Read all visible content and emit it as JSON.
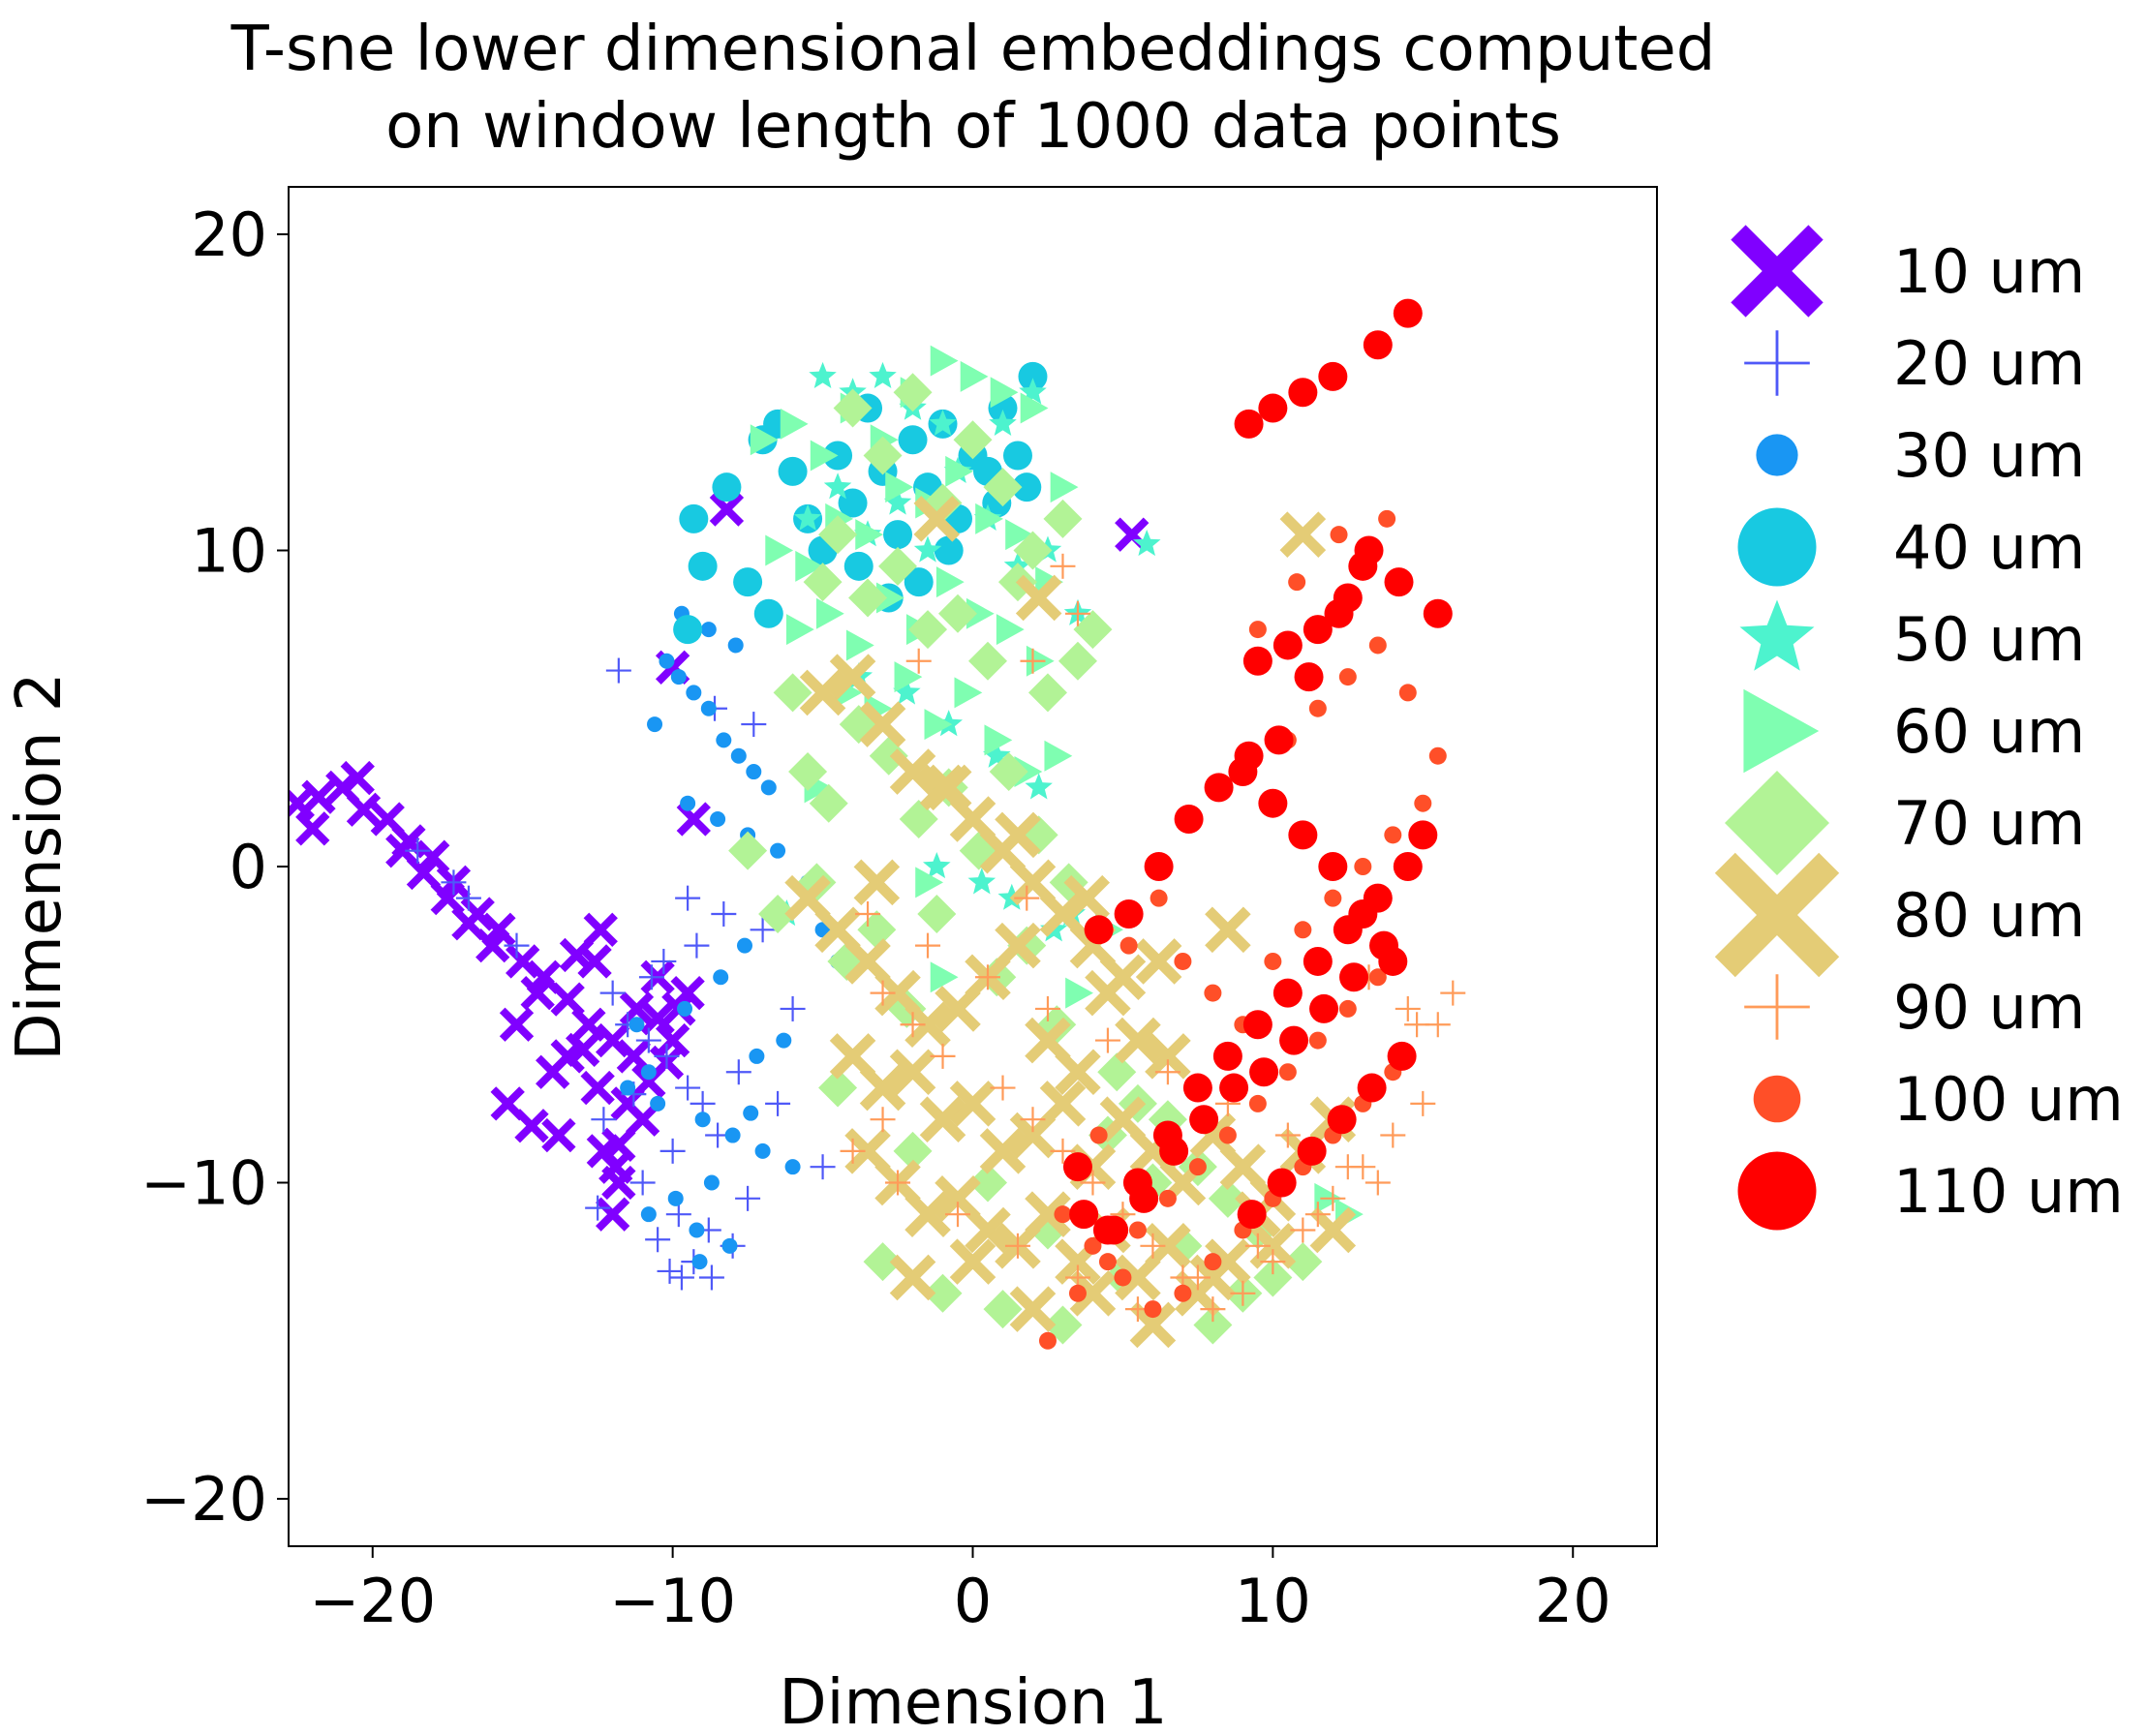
{
  "chart_data": {
    "type": "scatter",
    "title_lines": [
      "T-sne lower dimensional embeddings computed",
      "on window length of 1000 data points"
    ],
    "xlabel": "Dimension 1",
    "ylabel": "Dimension 2",
    "xlim": [
      -22.8,
      22.8
    ],
    "ylim": [
      -21.5,
      21.5
    ],
    "x_ticks": [
      -20,
      -10,
      0,
      10,
      20
    ],
    "x_tick_labels": [
      "−20",
      "−10",
      "0",
      "10",
      "20"
    ],
    "y_ticks": [
      -20,
      -10,
      0,
      10,
      20
    ],
    "y_tick_labels": [
      "−20",
      "−10",
      "0",
      "10",
      "20"
    ],
    "grid": false,
    "legend_position": "outside-right",
    "series": [
      {
        "name": "10 um",
        "marker": "X",
        "color": "#8000ff",
        "x": [
          -22.5,
          -21.8,
          -21.0,
          -20.3,
          -19.5,
          -18.8,
          -18.0,
          -17.3,
          -16.5,
          -15.8,
          -15.0,
          -14.3,
          -13.5,
          -12.8,
          -12.0,
          -11.3,
          -10.5,
          -9.8,
          -22.0,
          -20.5,
          -19.0,
          -17.5,
          -16.0,
          -14.5,
          -13.0,
          -12.5,
          -11.0,
          -10.0,
          -15.5,
          -14.0,
          -13.8,
          -12.3,
          -11.8,
          -15.2,
          -12.6,
          -11.5,
          -10.8,
          -18.3,
          -16.8,
          -13.2,
          -11.9,
          -10.2,
          -9.5,
          -12.0,
          -13.5,
          -14.7,
          -10.5,
          -11.2,
          -8.2,
          -10.0,
          -9.3,
          -11.8,
          -12.4,
          5.3
        ],
        "y": [
          2.0,
          2.2,
          2.5,
          1.8,
          1.5,
          0.8,
          0.3,
          -0.5,
          -1.5,
          -2.0,
          -3.0,
          -3.5,
          -4.2,
          -5.0,
          -5.5,
          -6.0,
          -4.8,
          -4.5,
          1.2,
          2.8,
          0.5,
          -1.0,
          -2.5,
          -4.0,
          -5.8,
          -7.0,
          -8.0,
          -5.5,
          -7.5,
          -6.5,
          -8.5,
          -9.0,
          -10.0,
          -5.0,
          -3.0,
          -7.5,
          -6.8,
          -0.2,
          -1.8,
          -2.8,
          -9.5,
          -6.2,
          -4.0,
          -11.0,
          -6.0,
          -8.2,
          -3.5,
          -4.5,
          11.3,
          6.3,
          1.5,
          -8.8,
          -2.0,
          10.5
        ]
      },
      {
        "name": "20 um",
        "marker": "plus",
        "color": "#4f59f8",
        "x": [
          -12.0,
          -11.5,
          -10.8,
          -10.2,
          -9.5,
          -9.0,
          -8.5,
          -10.0,
          -11.0,
          -9.8,
          -8.8,
          -7.5,
          -8.0,
          -9.3,
          -10.5,
          -12.5,
          -12.3,
          -11.3,
          -10.7,
          -9.2,
          -8.3,
          -7.0,
          -6.0,
          -5.0,
          -6.5,
          -7.8,
          -9.7,
          -10.1,
          -8.6,
          -7.3,
          -17.3,
          -18.5,
          -16.8,
          -15.2,
          -11.8,
          -9.5,
          -10.3,
          -8.7
        ],
        "y": [
          -4.0,
          -5.0,
          -5.5,
          -6.0,
          -7.0,
          -7.5,
          -8.5,
          -9.0,
          -10.0,
          -11.0,
          -11.5,
          -10.5,
          -12.0,
          -12.5,
          -11.8,
          -10.8,
          -8.0,
          -7.2,
          -3.5,
          -2.5,
          -1.5,
          -2.0,
          -4.5,
          -9.5,
          -7.5,
          -6.5,
          -13.0,
          -12.8,
          5.0,
          4.5,
          -0.5,
          0.5,
          -1.0,
          -2.5,
          6.2,
          -1.0,
          -3.0,
          -13.0
        ]
      },
      {
        "name": "30 um",
        "marker": "circle-s",
        "color": "#1996f3",
        "x": [
          -10.2,
          -9.8,
          -9.3,
          -8.8,
          -8.3,
          -7.8,
          -7.3,
          -6.8,
          -9.5,
          -8.5,
          -7.5,
          -6.5,
          -10.8,
          -11.5,
          -10.5,
          -9.0,
          -8.0,
          -7.0,
          -6.0,
          -8.7,
          -9.9,
          -10.8,
          -9.2,
          -8.1,
          -7.2,
          -6.3,
          -9.6,
          -8.4,
          -7.6,
          -6.7,
          -5.5,
          -5.0,
          -4.5,
          -7.9,
          -8.8,
          -9.7,
          -10.6,
          -11.2,
          -9.1,
          -7.4
        ],
        "y": [
          6.5,
          6.0,
          5.5,
          5.0,
          4.0,
          3.5,
          3.0,
          2.5,
          2.0,
          1.5,
          1.0,
          0.5,
          -6.5,
          -7.0,
          -7.5,
          -8.0,
          -8.5,
          -9.0,
          -9.5,
          -10.0,
          -10.5,
          -11.0,
          -11.5,
          -12.0,
          -6.0,
          -5.5,
          -4.5,
          -3.5,
          -2.5,
          -1.5,
          -0.5,
          -2.0,
          -3.0,
          7.0,
          7.5,
          8.0,
          4.5,
          -5.0,
          -12.5,
          -7.8
        ]
      },
      {
        "name": "40 um",
        "marker": "circle-l",
        "color": "#18c9e1",
        "x": [
          -9.0,
          -9.5,
          -8.2,
          -7.0,
          -6.5,
          -6.0,
          -5.5,
          -5.0,
          -4.5,
          -4.0,
          -3.5,
          -3.0,
          -2.5,
          -2.0,
          -1.5,
          -1.0,
          -0.5,
          0.0,
          0.5,
          1.0,
          1.5,
          2.0,
          -7.5,
          -6.8,
          -3.8,
          -2.8,
          -1.8,
          -0.8,
          0.8,
          1.8,
          -9.3
        ],
        "y": [
          9.5,
          7.5,
          12.0,
          13.5,
          14.0,
          12.5,
          11.0,
          10.0,
          13.0,
          11.5,
          14.5,
          12.5,
          10.5,
          13.5,
          12.0,
          14.0,
          11.0,
          13.0,
          12.5,
          14.5,
          13.0,
          15.5,
          9.0,
          8.0,
          9.5,
          8.5,
          9.0,
          10.0,
          11.5,
          12.0,
          11.0
        ]
      },
      {
        "name": "50 um",
        "marker": "star",
        "color": "#4df3ce",
        "x": [
          -5.0,
          -4.0,
          -3.0,
          -2.0,
          -1.0,
          0.0,
          1.0,
          2.0,
          -5.5,
          -4.5,
          -3.5,
          -2.5,
          -1.5,
          -0.5,
          0.5,
          1.5,
          2.5,
          3.5,
          -3.8,
          -2.2,
          -0.8,
          0.8,
          2.2,
          -6.2,
          -1.2,
          0.3,
          1.3,
          2.7,
          3.3,
          5.8
        ],
        "y": [
          15.5,
          15.0,
          15.5,
          14.5,
          14.0,
          13.5,
          14.0,
          15.0,
          11.0,
          12.0,
          10.5,
          11.5,
          10.0,
          12.5,
          11.0,
          9.5,
          10.0,
          8.0,
          6.0,
          5.5,
          4.5,
          3.5,
          2.5,
          -1.5,
          0.0,
          -0.5,
          -1.0,
          -2.0,
          -1.5,
          10.2
        ]
      },
      {
        "name": "60 um",
        "marker": "triangle",
        "color": "#7ffeb1",
        "x": [
          -7.0,
          -6.0,
          -5.0,
          -4.0,
          -3.0,
          -2.0,
          -1.0,
          0.0,
          1.0,
          2.0,
          3.0,
          -6.5,
          -5.5,
          -4.5,
          -3.5,
          -2.5,
          -1.5,
          -0.5,
          0.5,
          1.5,
          2.5,
          -5.8,
          -4.8,
          -3.8,
          -2.8,
          -1.8,
          -0.8,
          0.2,
          1.2,
          2.2,
          -4.2,
          -3.2,
          -2.2,
          -1.2,
          -0.2,
          0.8,
          1.8,
          -5.2,
          -1.5,
          4.5,
          3.5,
          -1.0,
          11.8,
          12.5,
          2.8
        ],
        "y": [
          13.5,
          14.0,
          13.0,
          14.5,
          13.5,
          15.0,
          16.0,
          15.5,
          15.0,
          14.5,
          12.0,
          10.0,
          9.5,
          11.0,
          10.5,
          12.0,
          11.5,
          12.5,
          11.0,
          10.5,
          9.0,
          7.5,
          8.0,
          7.0,
          8.5,
          7.5,
          9.0,
          8.0,
          7.5,
          6.5,
          5.5,
          5.0,
          6.0,
          4.5,
          5.5,
          4.0,
          3.0,
          2.5,
          -0.5,
          -2.0,
          -4.0,
          -3.5,
          -10.5,
          -11.0,
          3.5
        ]
      },
      {
        "name": "70 um",
        "marker": "diamond",
        "color": "#b2f396",
        "x": [
          -4.0,
          -3.0,
          -2.0,
          -1.0,
          0.0,
          1.0,
          2.0,
          3.0,
          4.0,
          -5.0,
          -4.5,
          -3.5,
          -2.5,
          -1.5,
          -0.5,
          0.5,
          1.5,
          2.5,
          3.5,
          -6.0,
          -5.5,
          -4.8,
          -3.8,
          -2.8,
          -1.8,
          -0.8,
          0.2,
          1.2,
          2.2,
          3.2,
          -7.5,
          -6.5,
          -5.2,
          -4.2,
          -3.2,
          -2.2,
          -1.2,
          0.8,
          1.8,
          2.8,
          4.8,
          5.5,
          6.5,
          7.5,
          8.5,
          9.5,
          -3.0,
          -1.0,
          1.0,
          3.0,
          5.0,
          7.0,
          9.0,
          11.0,
          -4.5,
          -2.0,
          0.5,
          2.5,
          4.5,
          6.0,
          8.0,
          10.0
        ],
        "y": [
          14.5,
          13.0,
          15.0,
          11.5,
          13.5,
          12.0,
          10.0,
          11.0,
          7.5,
          9.0,
          10.5,
          8.5,
          9.5,
          7.5,
          8.0,
          6.5,
          9.0,
          5.5,
          6.5,
          5.5,
          3.0,
          2.0,
          4.5,
          3.5,
          1.5,
          2.5,
          0.5,
          3.0,
          1.0,
          -0.5,
          0.5,
          -1.5,
          -0.5,
          -3.0,
          -2.0,
          -4.5,
          -1.5,
          -3.5,
          -2.5,
          -5.0,
          -6.5,
          -7.5,
          -8.0,
          -9.5,
          -10.5,
          -11.5,
          -12.5,
          -13.5,
          -14.0,
          -14.5,
          -13.0,
          -12.0,
          -13.5,
          -12.5,
          -7.0,
          -9.0,
          -10.0,
          -11.5,
          -8.5,
          -10.0,
          -14.5,
          -13.0
        ]
      },
      {
        "name": "80 um",
        "marker": "X-l",
        "color": "#e4cc76",
        "x": [
          -5.0,
          -4.0,
          -3.0,
          -2.0,
          -1.0,
          0.0,
          1.0,
          2.0,
          3.0,
          4.0,
          5.0,
          -5.5,
          -4.5,
          -3.5,
          -2.5,
          -1.5,
          -0.5,
          0.5,
          1.5,
          2.5,
          3.5,
          4.5,
          5.5,
          6.5,
          -4.0,
          -3.0,
          -2.0,
          -1.0,
          0.0,
          1.0,
          2.0,
          3.0,
          4.0,
          5.0,
          6.0,
          7.0,
          8.0,
          9.0,
          10.0,
          11.0,
          12.0,
          -3.5,
          -2.5,
          -1.5,
          -0.5,
          0.5,
          1.5,
          2.5,
          3.5,
          4.5,
          5.5,
          6.5,
          7.5,
          8.5,
          9.5,
          -2.0,
          0.0,
          2.0,
          4.0,
          6.0,
          8.0,
          10.0,
          12.0,
          -3.2,
          -0.8,
          1.5,
          3.8,
          6.2,
          8.5,
          -1.2,
          2.2,
          11.0
        ],
        "y": [
          5.5,
          6.0,
          4.5,
          3.0,
          2.5,
          1.5,
          0.5,
          -0.5,
          -1.5,
          -2.5,
          -3.5,
          -1.0,
          -2.0,
          -3.0,
          -4.0,
          -5.0,
          -4.5,
          -3.5,
          -2.5,
          -5.5,
          -6.5,
          -4.0,
          -5.5,
          -6.0,
          -6.0,
          -7.0,
          -6.5,
          -8.0,
          -7.5,
          -9.0,
          -8.5,
          -7.5,
          -9.5,
          -8.0,
          -9.0,
          -10.0,
          -8.5,
          -9.5,
          -10.5,
          -9.0,
          -8.0,
          -9.0,
          -10.0,
          -11.0,
          -10.5,
          -11.5,
          -12.0,
          -11.0,
          -12.5,
          -11.5,
          -13.0,
          -12.0,
          -13.5,
          -12.5,
          -11.0,
          -13.0,
          -12.5,
          -14.0,
          -13.5,
          -14.5,
          -13.0,
          -12.0,
          -11.5,
          -0.5,
          2.5,
          1.0,
          -1.0,
          -3.0,
          -2.0,
          11.0,
          8.5,
          10.5
        ]
      },
      {
        "name": "90 um",
        "marker": "plus",
        "color": "#ff9b59",
        "x": [
          -3.0,
          -2.0,
          -1.0,
          1.0,
          2.0,
          3.0,
          4.0,
          5.0,
          6.0,
          7.0,
          8.0,
          9.0,
          10.0,
          11.0,
          12.0,
          13.0,
          14.0,
          15.0,
          -4.0,
          -2.5,
          -0.5,
          1.5,
          3.5,
          5.5,
          7.5,
          9.5,
          11.5,
          13.5,
          15.5,
          -3.5,
          -1.5,
          0.5,
          2.5,
          4.5,
          6.5,
          8.5,
          10.5,
          12.5,
          14.5,
          3.0,
          3.5,
          2.0,
          1.8,
          -1.8,
          -3.0,
          16.0,
          14.8,
          13.2
        ],
        "y": [
          -4.0,
          -5.0,
          -6.0,
          -7.0,
          -8.0,
          -9.0,
          -10.0,
          -11.0,
          -12.0,
          -13.0,
          -14.0,
          -13.5,
          -12.5,
          -11.5,
          -10.5,
          -9.5,
          -8.5,
          -7.5,
          -9.0,
          -10.0,
          -11.0,
          -12.0,
          -13.0,
          -14.0,
          -13.0,
          -12.0,
          -11.0,
          -10.0,
          -5.0,
          -1.5,
          -2.5,
          -3.5,
          -4.5,
          -5.5,
          -6.5,
          -7.5,
          -8.5,
          -9.5,
          -4.5,
          9.5,
          8.0,
          6.5,
          -1.0,
          6.5,
          -8.0,
          -4.0,
          -5.0,
          -3.5
        ]
      },
      {
        "name": "100 um",
        "marker": "circle-m",
        "color": "#ff4f28",
        "x": [
          3.0,
          4.0,
          5.0,
          6.0,
          7.0,
          8.0,
          9.0,
          10.0,
          11.0,
          12.0,
          13.0,
          14.0,
          2.5,
          3.5,
          4.5,
          5.5,
          6.5,
          7.5,
          8.5,
          9.5,
          10.5,
          11.5,
          12.5,
          13.5,
          7.0,
          8.0,
          9.0,
          10.0,
          11.0,
          12.0,
          13.0,
          14.0,
          15.0,
          10.5,
          11.5,
          12.5,
          13.5,
          14.5,
          15.5,
          9.5,
          10.8,
          12.2,
          13.8,
          6.2,
          5.2,
          4.2
        ],
        "y": [
          -11.0,
          -12.0,
          -13.0,
          -14.0,
          -13.5,
          -12.5,
          -11.5,
          -10.5,
          -9.5,
          -8.5,
          -7.5,
          -6.5,
          -15.0,
          -13.5,
          -12.5,
          -11.5,
          -10.5,
          -9.5,
          -8.5,
          -7.5,
          -6.5,
          -5.5,
          -4.5,
          -3.5,
          -3.0,
          -4.0,
          -5.0,
          -3.0,
          -2.0,
          -1.0,
          0.0,
          1.0,
          2.0,
          4.0,
          5.0,
          6.0,
          7.0,
          5.5,
          3.5,
          7.5,
          9.0,
          10.5,
          11.0,
          -1.0,
          -2.5,
          -8.5
        ]
      },
      {
        "name": "110 um",
        "marker": "circle-l",
        "color": "#ff0000",
        "x": [
          3.5,
          4.5,
          5.5,
          6.5,
          7.5,
          8.5,
          9.5,
          10.5,
          11.5,
          12.5,
          13.5,
          14.5,
          15.0,
          9.0,
          10.0,
          11.0,
          12.0,
          13.0,
          14.0,
          15.5,
          14.2,
          13.2,
          12.2,
          11.2,
          10.2,
          9.2,
          8.2,
          7.2,
          6.2,
          5.2,
          4.2,
          3.7,
          4.7,
          5.7,
          6.7,
          7.7,
          8.7,
          9.7,
          10.7,
          11.7,
          12.7,
          13.7,
          9.3,
          10.3,
          11.3,
          12.3,
          13.3,
          14.3,
          9.5,
          10.5,
          11.5,
          12.5,
          13.0,
          9.2,
          10.0,
          11.0,
          12.0,
          13.5,
          14.5
        ],
        "y": [
          -9.5,
          -11.5,
          -10.0,
          -8.5,
          -7.0,
          -6.0,
          -5.0,
          -4.0,
          -3.0,
          -2.0,
          -1.0,
          0.0,
          1.0,
          3.0,
          2.0,
          1.0,
          0.0,
          -1.5,
          -3.0,
          8.0,
          9.0,
          10.0,
          8.0,
          6.0,
          4.0,
          3.5,
          2.5,
          1.5,
          0.0,
          -1.5,
          -2.0,
          -11.0,
          -11.5,
          -10.5,
          -9.0,
          -8.0,
          -7.0,
          -6.5,
          -5.5,
          -4.5,
          -3.5,
          -2.5,
          -11.0,
          -10.0,
          -9.0,
          -8.0,
          -7.0,
          -6.0,
          6.5,
          7.0,
          7.5,
          8.5,
          9.5,
          14.0,
          14.5,
          15.0,
          15.5,
          16.5,
          17.5
        ]
      }
    ]
  }
}
